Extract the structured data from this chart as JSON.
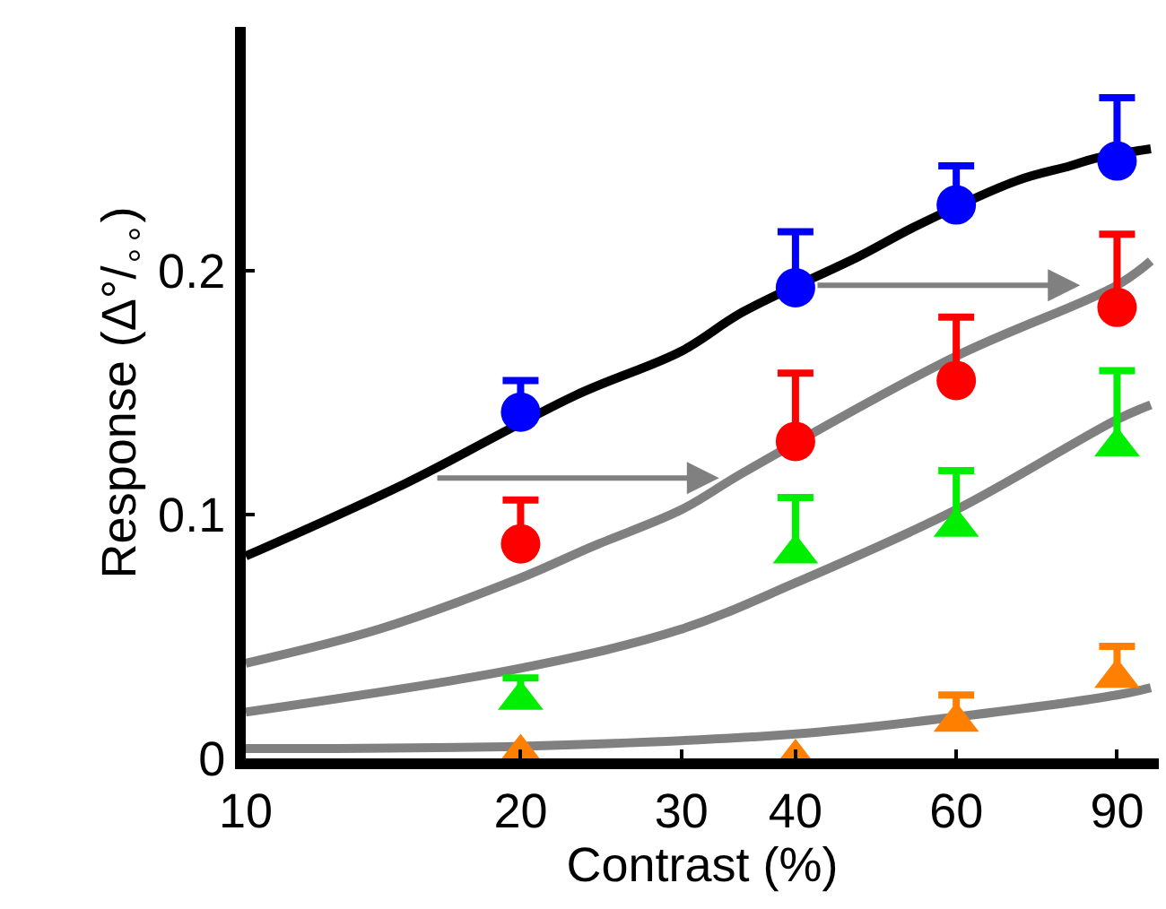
{
  "chart_data": {
    "type": "scatter",
    "xlabel": "Contrast (%)",
    "ylabel": "Response (Δ°/$_{∘∘}$)",
    "log": "x",
    "xlim": [
      10,
      100
    ],
    "xticks": [
      10,
      20,
      30,
      40,
      60,
      90
    ],
    "ylim": [
      0,
      0.3
    ],
    "yticks": [
      0,
      0.1,
      0.2
    ],
    "x": [
      20,
      40,
      60,
      90
    ],
    "series": [
      {
        "type": "line",
        "color": "#000000",
        "marker": "none",
        "line_style": "solid",
        "x": [
          10,
          15,
          23,
          30,
          35,
          47,
          54,
          70,
          80,
          85,
          98
        ],
        "values": [
          0.083,
          0.113,
          0.149,
          0.167,
          0.183,
          0.206,
          0.218,
          0.237,
          0.243,
          0.246,
          0.25
        ]
      },
      {
        "type": "line",
        "color": "#808080",
        "marker": "none",
        "line_style": "solid",
        "x": [
          10,
          14,
          20,
          24,
          30,
          35,
          60,
          90,
          98
        ],
        "values": [
          0.039,
          0.053,
          0.074,
          0.087,
          0.102,
          0.117,
          0.165,
          0.194,
          0.204
        ]
      },
      {
        "type": "line",
        "color": "#808080",
        "marker": "none",
        "line_style": "solid",
        "x": [
          10,
          20,
          30,
          40,
          60,
          90,
          98
        ],
        "values": [
          0.019,
          0.037,
          0.053,
          0.072,
          0.102,
          0.139,
          0.145
        ]
      },
      {
        "type": "line",
        "color": "#808080",
        "marker": "none",
        "line_style": "solid",
        "x": [
          10,
          20,
          40,
          60,
          90,
          98
        ],
        "values": [
          0.004,
          0.005,
          0.01,
          0.017,
          0.026,
          0.029
        ]
      },
      {
        "color": "#0000ff",
        "marker": "circle",
        "values": [
          0.142,
          0.193,
          0.227,
          0.245
        ],
        "errors": [
          [
            0.142,
            0.155
          ],
          [
            0.193,
            0.216
          ],
          [
            0.227,
            0.243
          ],
          [
            0.245,
            0.271
          ]
        ]
      },
      {
        "color": "#ff0000",
        "marker": "circle",
        "values": [
          0.088,
          0.13,
          0.155,
          0.185
        ],
        "errors": [
          [
            0.088,
            0.106
          ],
          [
            0.13,
            0.158
          ],
          [
            0.155,
            0.181
          ],
          [
            0.185,
            0.215
          ]
        ]
      },
      {
        "color": "#00ee00",
        "marker": "triangle",
        "values": [
          0.026,
          0.086,
          0.097,
          0.13
        ],
        "errors": [
          [
            0.026,
            0.033
          ],
          [
            0.086,
            0.107
          ],
          [
            0.097,
            0.118
          ],
          [
            0.13,
            0.159
          ]
        ]
      },
      {
        "color": "#ff8000",
        "marker": "triangle",
        "values": [
          0.004,
          0.002,
          0.017,
          0.035
        ],
        "errors": [
          null,
          null,
          [
            0.017,
            0.026
          ],
          [
            0.035,
            0.046
          ]
        ]
      }
    ]
  }
}
